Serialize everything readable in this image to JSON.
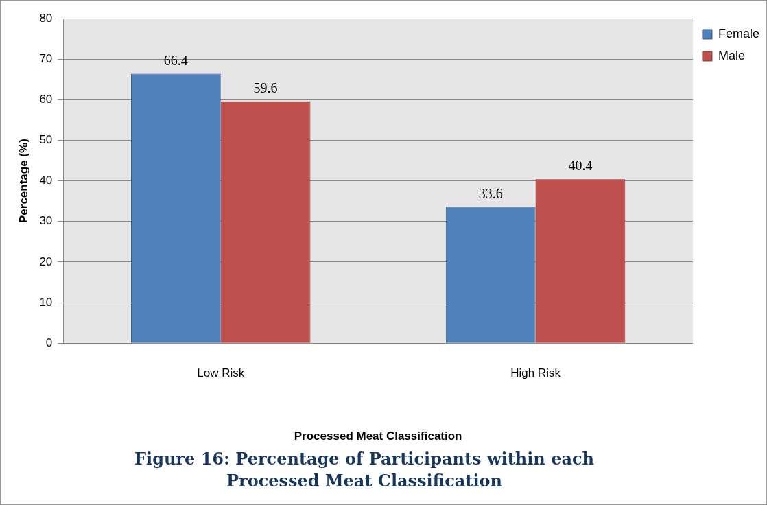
{
  "chart_data": {
    "type": "bar",
    "title": "Figure 16: Percentage of Participants within each Processed Meat Classification",
    "xlabel": "Processed Meat Classification",
    "ylabel": "Percentage (%)",
    "categories": [
      "Low Risk",
      "High Risk"
    ],
    "series": [
      {
        "name": "Female",
        "color": "#4f81bd",
        "values": [
          66.4,
          33.6
        ]
      },
      {
        "name": "Male",
        "color": "#c0504d",
        "values": [
          59.6,
          40.4
        ]
      }
    ],
    "ylim": [
      0,
      80
    ],
    "yticks": [
      0,
      10,
      20,
      30,
      40,
      50,
      60,
      70,
      80
    ],
    "grid": "y",
    "legend": "right",
    "data_labels": true
  }
}
